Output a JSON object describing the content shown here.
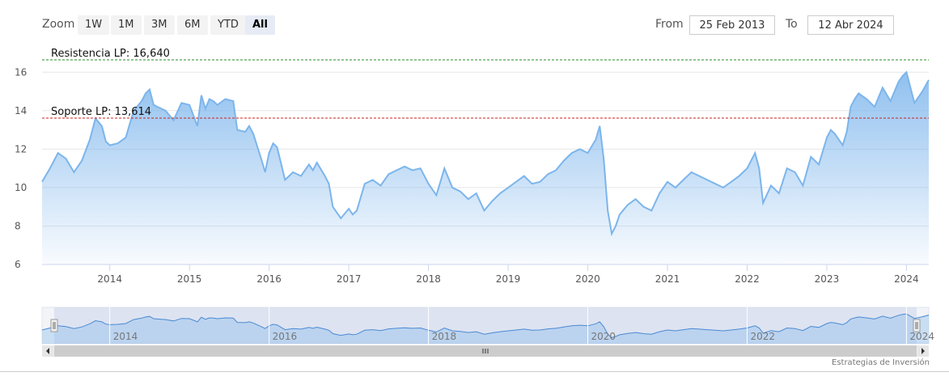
{
  "toolbar": {
    "zoom_label": "Zoom",
    "zoom_buttons": [
      {
        "label": "1W"
      },
      {
        "label": "1M"
      },
      {
        "label": "3M"
      },
      {
        "label": "6M"
      },
      {
        "label": "YTD"
      },
      {
        "label": "All",
        "active": true
      }
    ],
    "from_label": "From",
    "from_value": "25 Feb 2013",
    "to_label": "To",
    "to_value": "12 Abr 2024"
  },
  "credit": "Estrategias de Inversión",
  "colors": {
    "line": "#7cb5ec",
    "area_top": "#7cb5ec",
    "resistance": "#2a8a2a",
    "support": "#cc2222",
    "navigator_mask": "#ccd6eb"
  },
  "chart_data": {
    "type": "area",
    "ylim": [
      6,
      16.6
    ],
    "yticks": [
      "6",
      "8",
      "10",
      "12",
      "14",
      "16"
    ],
    "xticks": [
      "2014",
      "2015",
      "2016",
      "2017",
      "2018",
      "2019",
      "2020",
      "2021",
      "2022",
      "2023",
      "2024"
    ],
    "navigator_ticks": [
      "2014",
      "2016",
      "2018",
      "2020",
      "2022",
      "2024"
    ],
    "x_range": [
      2013.15,
      2024.28
    ],
    "series": [
      {
        "x": [
          2013.15,
          2013.25,
          2013.35,
          2013.45,
          2013.55,
          2013.65,
          2013.75,
          2013.82,
          2013.9,
          2013.95,
          2014.0,
          2014.1,
          2014.2,
          2014.3,
          2014.4,
          2014.45,
          2014.5,
          2014.55,
          2014.6,
          2014.7,
          2014.8,
          2014.9,
          2015.0,
          2015.1,
          2015.15,
          2015.2,
          2015.25,
          2015.3,
          2015.35,
          2015.45,
          2015.55,
          2015.6,
          2015.7,
          2015.75,
          2015.8,
          2015.9,
          2015.95,
          2016.0,
          2016.05,
          2016.1,
          2016.2,
          2016.3,
          2016.4,
          2016.5,
          2016.55,
          2016.6,
          2016.7,
          2016.75,
          2016.8,
          2016.9,
          2017.0,
          2017.05,
          2017.1,
          2017.2,
          2017.3,
          2017.4,
          2017.5,
          2017.6,
          2017.7,
          2017.8,
          2017.9,
          2018.0,
          2018.1,
          2018.2,
          2018.3,
          2018.4,
          2018.5,
          2018.6,
          2018.7,
          2018.8,
          2018.9,
          2019.0,
          2019.1,
          2019.2,
          2019.3,
          2019.4,
          2019.5,
          2019.6,
          2019.7,
          2019.8,
          2019.9,
          2020.0,
          2020.1,
          2020.15,
          2020.2,
          2020.25,
          2020.3,
          2020.35,
          2020.4,
          2020.5,
          2020.6,
          2020.7,
          2020.8,
          2020.9,
          2021.0,
          2021.1,
          2021.2,
          2021.3,
          2021.4,
          2021.5,
          2021.6,
          2021.7,
          2021.8,
          2021.9,
          2022.0,
          2022.1,
          2022.15,
          2022.2,
          2022.3,
          2022.4,
          2022.5,
          2022.6,
          2022.7,
          2022.8,
          2022.9,
          2023.0,
          2023.05,
          2023.1,
          2023.2,
          2023.25,
          2023.3,
          2023.35,
          2023.4,
          2023.5,
          2023.6,
          2023.7,
          2023.8,
          2023.9,
          2023.95,
          2024.0,
          2024.1,
          2024.2,
          2024.28
        ],
        "y": [
          10.3,
          11.0,
          11.8,
          11.5,
          10.8,
          11.4,
          12.5,
          13.6,
          13.2,
          12.4,
          12.2,
          12.3,
          12.6,
          14.0,
          14.5,
          14.9,
          15.1,
          14.3,
          14.2,
          14.0,
          13.5,
          14.4,
          14.3,
          13.2,
          14.8,
          14.1,
          14.6,
          14.5,
          14.3,
          14.6,
          14.5,
          13.0,
          12.9,
          13.2,
          12.8,
          11.5,
          10.8,
          11.8,
          12.3,
          12.1,
          10.4,
          10.8,
          10.6,
          11.2,
          10.9,
          11.3,
          10.6,
          10.2,
          9.0,
          8.4,
          8.9,
          8.6,
          8.8,
          10.2,
          10.4,
          10.1,
          10.7,
          10.9,
          11.1,
          10.9,
          11.0,
          10.2,
          9.6,
          11.0,
          10.0,
          9.8,
          9.4,
          9.7,
          8.8,
          9.3,
          9.7,
          10.0,
          10.3,
          10.6,
          10.2,
          10.3,
          10.7,
          10.9,
          11.4,
          11.8,
          12.0,
          11.8,
          12.5,
          13.2,
          11.5,
          8.8,
          7.6,
          8.0,
          8.6,
          9.1,
          9.4,
          9.0,
          8.8,
          9.7,
          10.3,
          10.0,
          10.4,
          10.8,
          10.6,
          10.4,
          10.2,
          10.0,
          10.3,
          10.6,
          11.0,
          11.8,
          11.0,
          9.2,
          10.1,
          9.7,
          11.0,
          10.8,
          10.1,
          11.6,
          11.2,
          12.6,
          13.0,
          12.8,
          12.2,
          12.9,
          14.2,
          14.6,
          14.9,
          14.6,
          14.2,
          15.2,
          14.5,
          15.5,
          15.8,
          16.0,
          14.4,
          15.0,
          15.6
        ]
      }
    ],
    "annotations": [
      {
        "label": "Resistencia LP: 16,640",
        "value": 16.64,
        "style": "dashed",
        "color": "#2a8a2a"
      },
      {
        "label": "Soporte LP: 13,614",
        "value": 13.614,
        "style": "dashed",
        "color": "#cc2222"
      }
    ]
  }
}
